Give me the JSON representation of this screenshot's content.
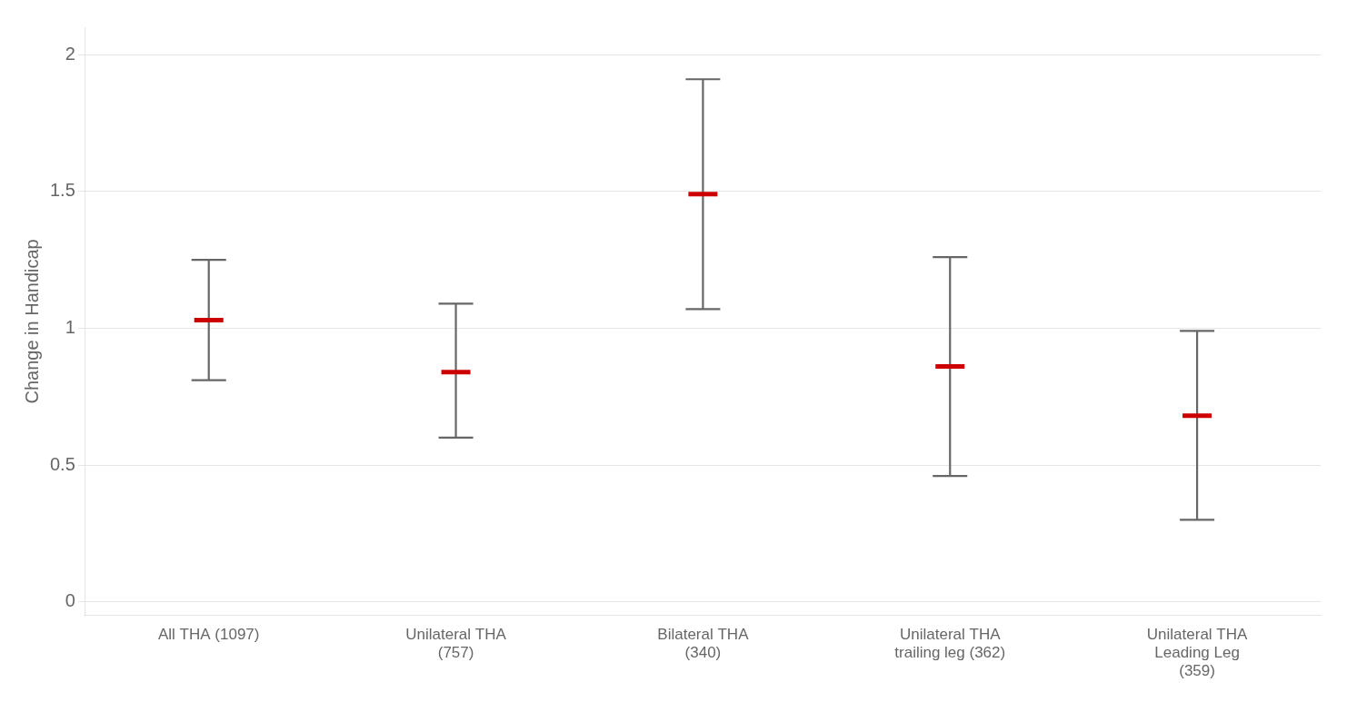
{
  "chart_data": {
    "type": "errorbar",
    "categories": [
      "All THA (1097)",
      "Unilateral THA\n(757)",
      "Bilateral THA\n(340)",
      "Unilateral THA\ntrailing leg (362)",
      "Unilateral THA\nLeading Leg\n(359)"
    ],
    "values": [
      1.03,
      0.84,
      1.49,
      0.86,
      0.68
    ],
    "ci_lower": [
      0.81,
      0.6,
      1.07,
      0.46,
      0.3
    ],
    "ci_upper": [
      1.25,
      1.09,
      1.91,
      1.26,
      0.99
    ],
    "color": "#cc0000",
    "ylabel": "Change in Handicap",
    "ylim": [
      -0.05,
      2.1
    ],
    "yticks": [
      0,
      0.5,
      1,
      1.5,
      2
    ],
    "grid": true
  }
}
